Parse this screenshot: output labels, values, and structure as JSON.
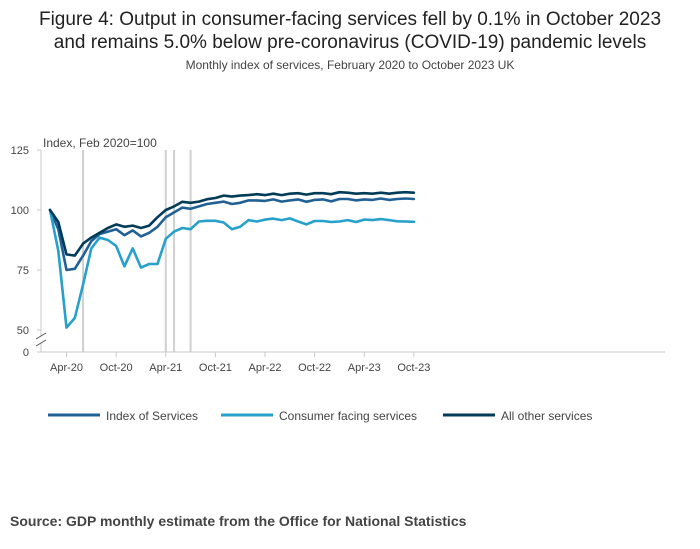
{
  "title_line1": "Figure 4: Output in consumer-facing services fell by 0.1% in October 2023",
  "title_line2": "and remains 5.0% below pre-coronavirus (COVID-19) pandemic levels",
  "subtitle": "Monthly index of services, February 2020 to October 2023 UK",
  "source": "Source: GDP monthly estimate from the Office for National Statistics",
  "chart_data": {
    "type": "line",
    "title": "Figure 4: Output in consumer-facing services fell by 0.1% in October 2023 and remains 5.0% below pre-coronavirus (COVID-19) pandemic levels",
    "subtitle": "Monthly index of services, February 2020 to October 2023 UK",
    "xlabel": "",
    "ylabel": "Index, Feb 2020=100",
    "y_ticks": [
      0,
      50,
      75,
      100,
      125
    ],
    "ylim": [
      0,
      125
    ],
    "y_axis_break": [
      0,
      50
    ],
    "x_tick_labels": [
      "Apr-20",
      "Oct-20",
      "Apr-21",
      "Oct-21",
      "Apr-22",
      "Oct-22",
      "Apr-23",
      "Oct-23"
    ],
    "x_tick_months": [
      "2020-04",
      "2020-10",
      "2021-04",
      "2021-10",
      "2022-04",
      "2022-10",
      "2023-04",
      "2023-10"
    ],
    "x": [
      "2020-02",
      "2020-03",
      "2020-04",
      "2020-05",
      "2020-06",
      "2020-07",
      "2020-08",
      "2020-09",
      "2020-10",
      "2020-11",
      "2020-12",
      "2021-01",
      "2021-02",
      "2021-03",
      "2021-04",
      "2021-05",
      "2021-06",
      "2021-07",
      "2021-08",
      "2021-09",
      "2021-10",
      "2021-11",
      "2021-12",
      "2022-01",
      "2022-02",
      "2022-03",
      "2022-04",
      "2022-05",
      "2022-06",
      "2022-07",
      "2022-08",
      "2022-09",
      "2022-10",
      "2022-11",
      "2022-12",
      "2023-01",
      "2023-02",
      "2023-03",
      "2023-04",
      "2023-05",
      "2023-06",
      "2023-07",
      "2023-08",
      "2023-09",
      "2023-10"
    ],
    "reference_lines": [
      "2020-06",
      "2021-04",
      "2021-05",
      "2021-07"
    ],
    "legend_position": "bottom",
    "grid": false,
    "series": [
      {
        "name": "Index of Services",
        "color": "#206095",
        "values": [
          100,
          92,
          75,
          75.5,
          81,
          87,
          90,
          91,
          92,
          89.5,
          91.5,
          89,
          90.5,
          93,
          97,
          99,
          101,
          100.5,
          101.5,
          102.5,
          103,
          103.5,
          102.5,
          103,
          104,
          104,
          103.8,
          104.4,
          103.5,
          104,
          104.4,
          103.4,
          104.2,
          104.4,
          103.6,
          104.6,
          104.6,
          104,
          104.4,
          104.2,
          104.8,
          104.2,
          104.6,
          104.8,
          104.6
        ]
      },
      {
        "name": "Consumer facing services",
        "color": "#27a0cc",
        "values": [
          100,
          83,
          51,
          55,
          69,
          84,
          88.5,
          87.5,
          85,
          76.5,
          84,
          76,
          77.5,
          77.5,
          88,
          91,
          92.5,
          92,
          95.2,
          95.5,
          95.5,
          94.8,
          92,
          93,
          95.8,
          95.2,
          96,
          96.4,
          95.8,
          96.5,
          95.2,
          94,
          95.4,
          95.4,
          95,
          95.2,
          95.8,
          95,
          96,
          95.8,
          96.2,
          95.8,
          95.3,
          95.2,
          95.1
        ]
      },
      {
        "name": "All other services",
        "color": "#003c57",
        "values": [
          100,
          95,
          81.5,
          81,
          86,
          88.5,
          90.5,
          92.5,
          94,
          93,
          93.5,
          92.5,
          93.5,
          97,
          100,
          101.5,
          103.4,
          103,
          103.5,
          104.5,
          105,
          106,
          105.6,
          106,
          106.2,
          106.6,
          106.2,
          106.8,
          106.2,
          106.8,
          107,
          106.4,
          107,
          107,
          106.6,
          107.4,
          107.2,
          106.8,
          107,
          106.8,
          107.2,
          106.8,
          107.2,
          107.4,
          107.2
        ]
      }
    ]
  }
}
